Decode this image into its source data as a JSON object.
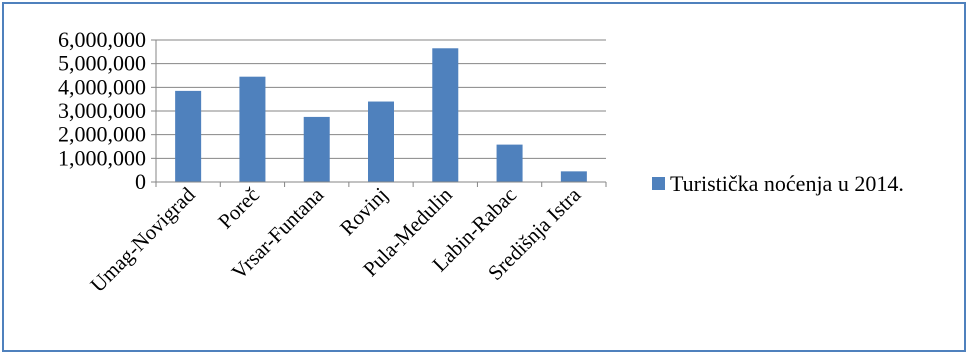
{
  "chart_data": {
    "type": "bar",
    "categories": [
      "Umag-Novigrad",
      "Poreč",
      "Vrsar-Funtana",
      "Rovinj",
      "Pula-Medulin",
      "Labin-Rabac",
      "Središnja Istra"
    ],
    "series": [
      {
        "name": "Turistička noćenja u 2014.",
        "values": [
          3850000,
          4450000,
          2750000,
          3400000,
          5650000,
          1580000,
          450000
        ],
        "color": "#4f81bd"
      }
    ],
    "ylim": [
      0,
      6000000
    ],
    "yticks": [
      "0",
      "1,000,000",
      "2,000,000",
      "3,000,000",
      "4,000,000",
      "5,000,000",
      "6,000,000"
    ],
    "grid": true,
    "legend": "right"
  }
}
